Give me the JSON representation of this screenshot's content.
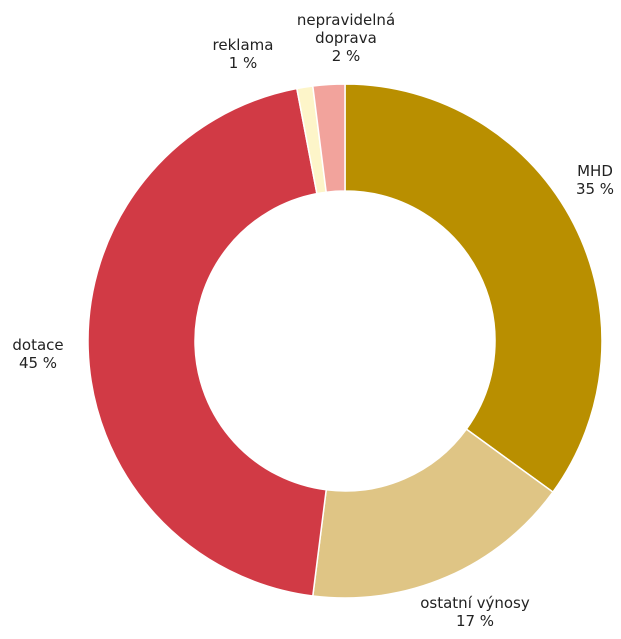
{
  "chart_data": {
    "type": "donut",
    "categories": [
      "MHD",
      "ostatní výnosy",
      "dotace",
      "reklama",
      "nepravidelná doprava"
    ],
    "values": [
      35,
      17,
      45,
      1,
      2
    ],
    "value_labels": [
      "35 %",
      "17 %",
      "45 %",
      "1 %",
      "2 %"
    ],
    "colors": [
      "#b98f00",
      "#dfc585",
      "#d13a45",
      "#fdf5c9",
      "#f2a39c"
    ]
  }
}
